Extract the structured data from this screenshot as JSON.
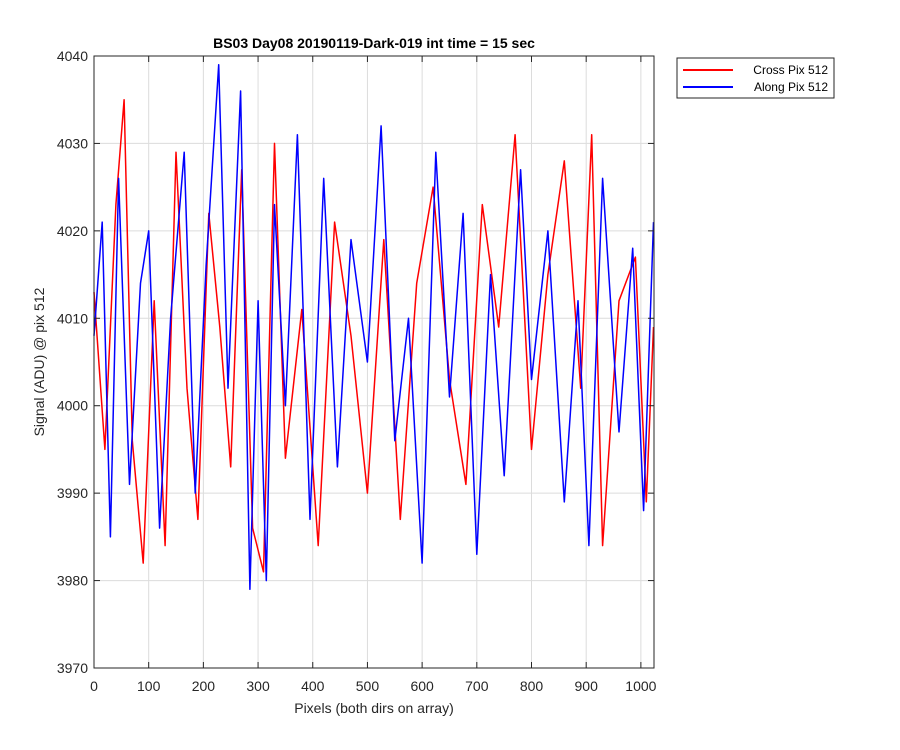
{
  "chart_data": {
    "type": "line",
    "title": "BS03 Day08 20190119-Dark-019 int time = 15 sec",
    "xlabel": "Pixels (both dirs on array)",
    "ylabel": "Signal (ADU) @ pix 512",
    "xlim": [
      0,
      1024
    ],
    "ylim": [
      3970,
      4040
    ],
    "xticks": [
      "0",
      "100",
      "200",
      "300",
      "400",
      "500",
      "600",
      "700",
      "800",
      "900",
      "1000"
    ],
    "yticks": [
      "3970",
      "3980",
      "3990",
      "4000",
      "4010",
      "4020",
      "4030",
      "4040"
    ],
    "grid": true,
    "legend_position": "outside-top-right",
    "series": [
      {
        "name": "Cross Pix 512",
        "color": "#ff0000",
        "x": [
          0,
          20,
          40,
          55,
          70,
          90,
          110,
          130,
          150,
          170,
          190,
          210,
          230,
          250,
          270,
          290,
          310,
          330,
          350,
          380,
          410,
          440,
          470,
          500,
          530,
          560,
          590,
          620,
          650,
          680,
          710,
          740,
          770,
          800,
          830,
          860,
          890,
          910,
          930,
          960,
          990,
          1010,
          1023
        ],
        "y": [
          4013,
          3995,
          4023,
          4035,
          3996,
          3982,
          4012,
          3984,
          4029,
          4002,
          3987,
          4022,
          4009,
          3993,
          4027,
          3986,
          3981,
          4030,
          3994,
          4011,
          3984,
          4021,
          4008,
          3990,
          4019,
          3987,
          4014,
          4025,
          4003,
          3991,
          4023,
          4009,
          4031,
          3995,
          4015,
          4028,
          4002,
          4031,
          3984,
          4012,
          4017,
          3989,
          4009
        ]
      },
      {
        "name": "Along Pix 512",
        "color": "#0000ff",
        "x": [
          0,
          15,
          30,
          45,
          65,
          85,
          100,
          120,
          140,
          165,
          185,
          205,
          228,
          245,
          268,
          285,
          300,
          315,
          330,
          350,
          372,
          395,
          420,
          445,
          470,
          500,
          525,
          550,
          575,
          600,
          625,
          650,
          675,
          700,
          725,
          750,
          780,
          800,
          830,
          860,
          885,
          905,
          930,
          960,
          985,
          1005,
          1023
        ],
        "y": [
          4008,
          4021,
          3985,
          4026,
          3991,
          4014,
          4020,
          3986,
          4010,
          4029,
          3990,
          4016,
          4039,
          4002,
          4036,
          3979,
          4012,
          3980,
          4023,
          4000,
          4031,
          3987,
          4026,
          3993,
          4019,
          4005,
          4032,
          3996,
          4010,
          3982,
          4029,
          4001,
          4022,
          3983,
          4015,
          3992,
          4027,
          4003,
          4020,
          3989,
          4012,
          3984,
          4026,
          3997,
          4018,
          3988,
          4021
        ]
      }
    ]
  }
}
